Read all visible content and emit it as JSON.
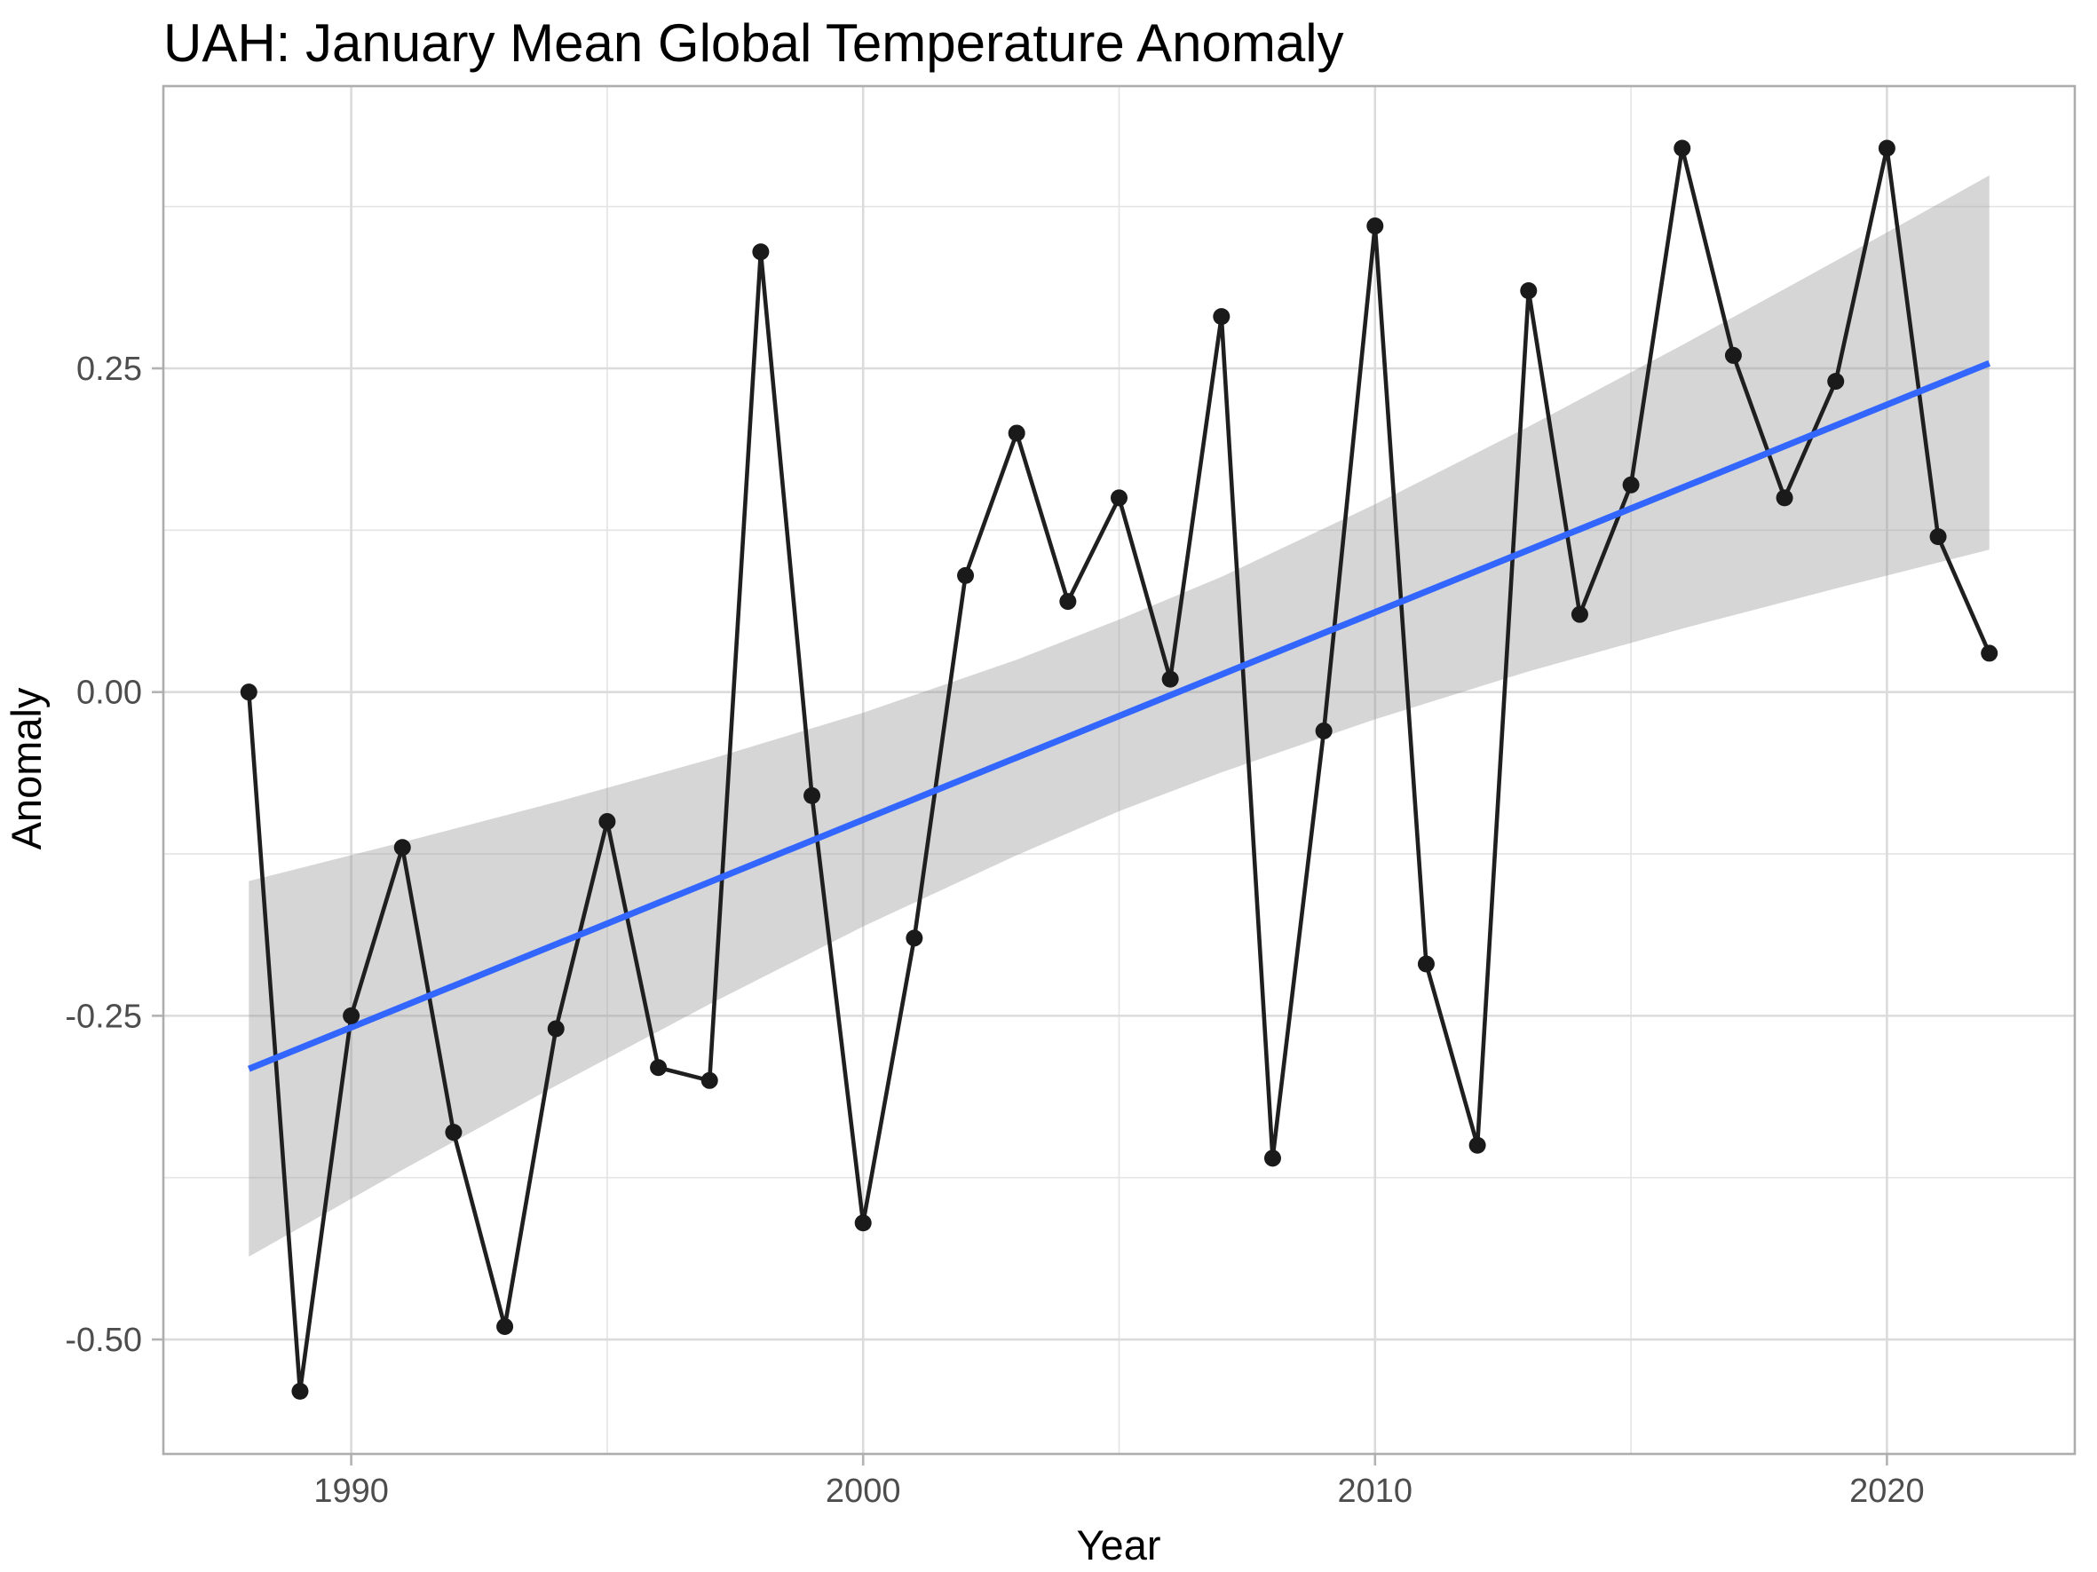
{
  "title": "UAH: January Mean Global Temperature Anomaly",
  "chart_data": {
    "type": "line",
    "title": "UAH: January Mean Global Temperature Anomaly",
    "xlabel": "Year",
    "ylabel": "Anomaly",
    "series": [
      {
        "name": "January mean global temperature anomaly",
        "x": [
          1988,
          1989,
          1990,
          1991,
          1992,
          1993,
          1994,
          1995,
          1996,
          1997,
          1998,
          1999,
          2000,
          2001,
          2002,
          2003,
          2004,
          2005,
          2006,
          2007,
          2008,
          2009,
          2010,
          2011,
          2012,
          2013,
          2014,
          2015,
          2016,
          2017,
          2018,
          2019,
          2020,
          2021,
          2022
        ],
        "y": [
          0.0,
          -0.54,
          -0.25,
          -0.12,
          -0.34,
          -0.49,
          -0.26,
          -0.1,
          -0.29,
          -0.3,
          0.34,
          -0.08,
          -0.41,
          -0.19,
          0.09,
          0.2,
          0.07,
          0.15,
          0.01,
          0.29,
          -0.36,
          -0.03,
          0.36,
          -0.21,
          -0.35,
          0.31,
          0.06,
          0.16,
          0.42,
          0.26,
          0.15,
          0.24,
          0.42,
          0.12,
          0.03
        ]
      }
    ],
    "trend_line": {
      "name": "linear fit (lm)",
      "x": [
        1988,
        2022
      ],
      "y": [
        -0.291,
        0.254
      ]
    },
    "confidence_ribbon": {
      "name": "95% confidence band",
      "x": [
        1988,
        1991,
        1994,
        1997,
        2000,
        2003,
        2005,
        2007,
        2010,
        2013,
        2016,
        2019,
        2022
      ],
      "lo": [
        -0.436,
        -0.369,
        -0.304,
        -0.241,
        -0.181,
        -0.126,
        -0.092,
        -0.062,
        -0.021,
        0.016,
        0.049,
        0.08,
        0.11
      ],
      "hi": [
        -0.146,
        -0.116,
        -0.085,
        -0.052,
        -0.016,
        0.025,
        0.056,
        0.089,
        0.145,
        0.205,
        0.268,
        0.333,
        0.399
      ]
    },
    "x_ticks": [
      {
        "v": 1990,
        "label": "1990"
      },
      {
        "v": 2000,
        "label": "2000"
      },
      {
        "v": 2010,
        "label": "2010"
      },
      {
        "v": 2020,
        "label": "2020"
      }
    ],
    "x_minor": [
      1995,
      2005,
      2015
    ],
    "y_ticks": [
      {
        "v": 0.25,
        "label": "0.25"
      },
      {
        "v": 0.0,
        "label": "0.00"
      },
      {
        "v": -0.25,
        "label": "-0.25"
      },
      {
        "v": -0.5,
        "label": "-0.50"
      }
    ],
    "y_minor": [
      0.375,
      0.125,
      -0.125,
      -0.375
    ],
    "xlim": [
      1986.33,
      2023.67
    ],
    "ylim": [
      -0.5884,
      0.468
    ],
    "grid": true,
    "legend_position": "none",
    "colors": {
      "point": "#1a1a1a",
      "line": "#1f1f1f",
      "trend": "#3366FF",
      "ribbon": "rgba(153,153,153,0.40)",
      "grid_major": "#DBDBDB",
      "grid_minor": "#E4E4E4",
      "panel_border": "#ADADAD",
      "tick_mark": "#B3B3B3",
      "axis_text": "#4D4D4D",
      "title_text": "#000000",
      "panel_bg": "#FFFFFF"
    }
  }
}
